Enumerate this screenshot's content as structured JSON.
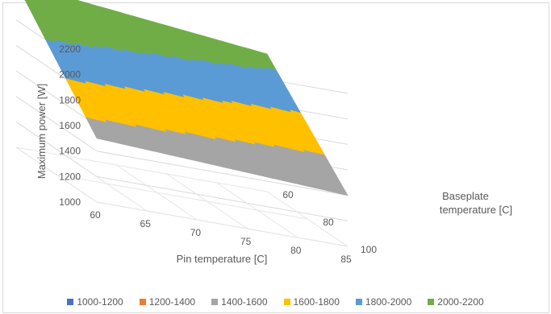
{
  "chart_data": {
    "type": "surface",
    "xlabel": "Pin temperature [C]",
    "ylabel": "Baseplate temperature [C]",
    "zlabel": "Maximum power [W]",
    "x_ticks": [
      "60",
      "65",
      "70",
      "75",
      "80",
      "85"
    ],
    "y_ticks": [
      "60",
      "80",
      "100"
    ],
    "z_ticks": [
      "1000",
      "1200",
      "1400",
      "1600",
      "1800",
      "2000",
      "2200"
    ],
    "zlim": [
      1000,
      2200
    ],
    "legend": [
      {
        "label": "1000-1200",
        "color": "#4472c4"
      },
      {
        "label": "1200-1400",
        "color": "#ed7d31"
      },
      {
        "label": "1400-1600",
        "color": "#a5a5a5"
      },
      {
        "label": "1600-1800",
        "color": "#ffc000"
      },
      {
        "label": "1800-2000",
        "color": "#5b9bd5"
      },
      {
        "label": "2000-2200",
        "color": "#70ad47"
      }
    ],
    "pin_temperature": [
      60,
      85
    ],
    "baseplate_temperature": [
      60,
      100
    ],
    "max_power": [
      [
        2290,
        2080
      ],
      [
        1500,
        1400
      ]
    ],
    "legend_position": "bottom",
    "grid": true
  }
}
